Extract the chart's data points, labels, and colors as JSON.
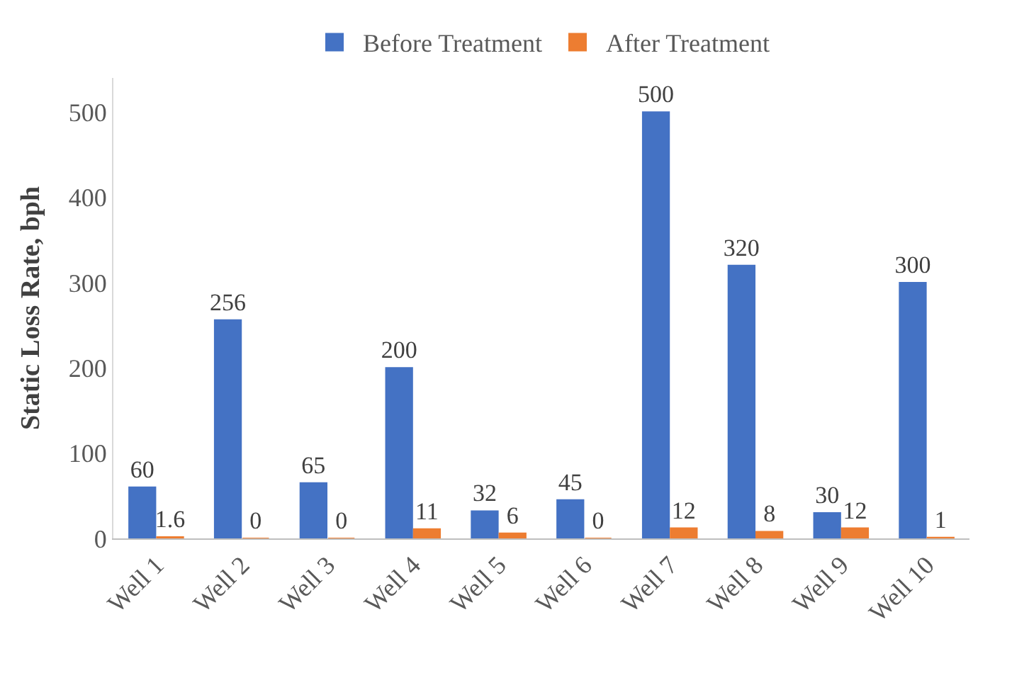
{
  "chart_data": {
    "type": "bar",
    "ylabel": "Static Loss Rate, bph",
    "categories": [
      "Well 1",
      "Well 2",
      "Well 3",
      "Well 4",
      "Well 5",
      "Well 6",
      "Well 7",
      "Well 8",
      "Well 9",
      "Well 10"
    ],
    "series": [
      {
        "name": "Before Treatment",
        "color": "#4472c4",
        "values": [
          60,
          256,
          65,
          200,
          32,
          45,
          500,
          320,
          30,
          300
        ]
      },
      {
        "name": "After Treatment",
        "color": "#ed7d31",
        "values": [
          1.6,
          0,
          0,
          11,
          6,
          0,
          12,
          8,
          12,
          1
        ]
      }
    ],
    "ylim": [
      0,
      540
    ],
    "yticks": [
      0,
      100,
      200,
      300,
      400,
      500
    ],
    "data_labels": true,
    "legend": "top"
  }
}
